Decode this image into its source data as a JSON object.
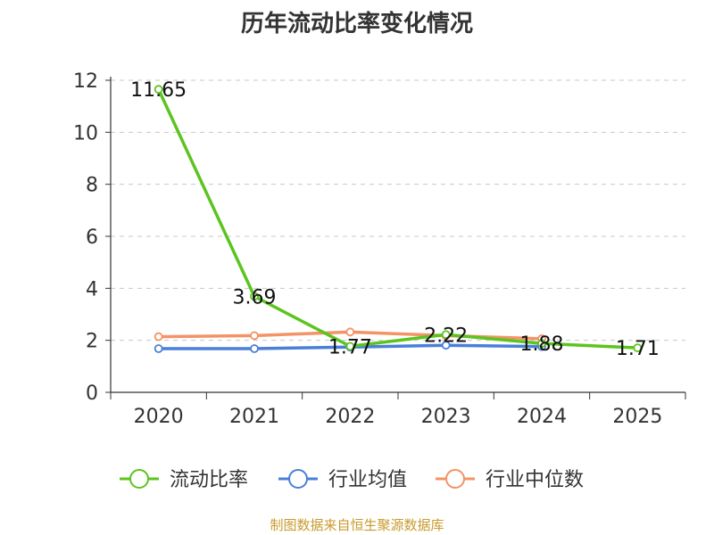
{
  "chart_data": {
    "type": "line",
    "title": "历年流动比率变化情况",
    "categories": [
      "2020",
      "2021",
      "2022",
      "2023",
      "2024",
      "2025"
    ],
    "ylim": [
      0,
      12
    ],
    "yticks": [
      "0",
      "2",
      "4",
      "6",
      "8",
      "10",
      "12"
    ],
    "grid": true,
    "legend_position": "bottom",
    "series": [
      {
        "name": "流动比率",
        "color": "#5cc41f",
        "values": [
          11.65,
          3.69,
          1.77,
          2.22,
          1.88,
          1.71
        ],
        "labels": [
          "11.65",
          "3.69",
          "1.77",
          "2.22",
          "1.88",
          "1.71"
        ]
      },
      {
        "name": "行业均值",
        "color": "#4a7fd8",
        "values": [
          1.68,
          1.68,
          1.74,
          1.81,
          1.76,
          null
        ],
        "labels": []
      },
      {
        "name": "行业中位数",
        "color": "#f39366",
        "values": [
          2.14,
          2.18,
          2.32,
          2.18,
          2.06,
          null
        ],
        "labels": []
      }
    ]
  },
  "footer": {
    "source": "制图数据来自恒生聚源数据库"
  }
}
